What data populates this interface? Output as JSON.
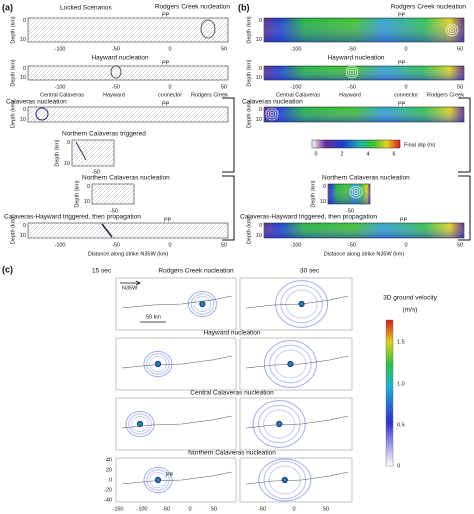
{
  "panel_a": {
    "label": "(a)",
    "title": "Locked Scenarios",
    "pp": "PP",
    "depth_axis": "Depth (km)",
    "depth_ticks": [
      "0",
      "10"
    ],
    "x_ticks": [
      "-100",
      "-50",
      "0",
      "50"
    ],
    "x_axis": "Distance along strike N35W (km)",
    "scenarios": [
      "Rodgers Creek nucleation",
      "Hayward nucleation",
      "Calaveras nucleation",
      "Northern Calaveras triggered",
      "Northern Calaveras nucleation",
      "Calaveras-Hayward triggered, then propagation"
    ],
    "fault_labels": [
      "Central Calaveras",
      "Hayward",
      "connector",
      "Rodgers Creek"
    ],
    "inset_tick": "-50"
  },
  "panel_b": {
    "label": "(b)",
    "pp": "PP",
    "depth_axis": "Depth (km)",
    "depth_ticks": [
      "0",
      "10"
    ],
    "x_ticks": [
      "-100",
      "-50",
      "0",
      "50"
    ],
    "x_axis": "Distance along strike N35W (km)",
    "scenarios": [
      "Rodgers Creek nucleation",
      "Hayward nucleation",
      "Calaveras nucleation",
      "Northern Calaveras nucleation",
      "Calaveras-Hayward triggered, then propagation"
    ],
    "fault_labels": [
      "Central Calaveras",
      "Hayward",
      "connector",
      "Rodgers Creek"
    ],
    "inset_tick": "-50",
    "colorbar": {
      "label": "Final slip (m)",
      "ticks": [
        "0",
        "2",
        "4",
        "6"
      ]
    }
  },
  "panel_c": {
    "label": "(c)",
    "times": [
      "15 sec",
      "30 sec"
    ],
    "scenarios": [
      "Rodgers Creek nucleation",
      "Hayward nucleation",
      "Central Calaveras nucleation",
      "Northern Calaveras nucleation"
    ],
    "direction": "N35W",
    "scale_bar": "50 km",
    "pp": "PP",
    "y_ticks": [
      "40",
      "20",
      "0",
      "-20",
      "-40"
    ],
    "x_ticks_left": [
      "-150",
      "-100",
      "-50",
      "0",
      "50"
    ],
    "x_ticks_right": [
      "-50",
      "0",
      "50"
    ],
    "colorbar": {
      "title": "3D ground velocity",
      "unit": "(m/s)",
      "ticks": [
        "1.5",
        "1.0",
        "0.5",
        "0"
      ]
    }
  }
}
